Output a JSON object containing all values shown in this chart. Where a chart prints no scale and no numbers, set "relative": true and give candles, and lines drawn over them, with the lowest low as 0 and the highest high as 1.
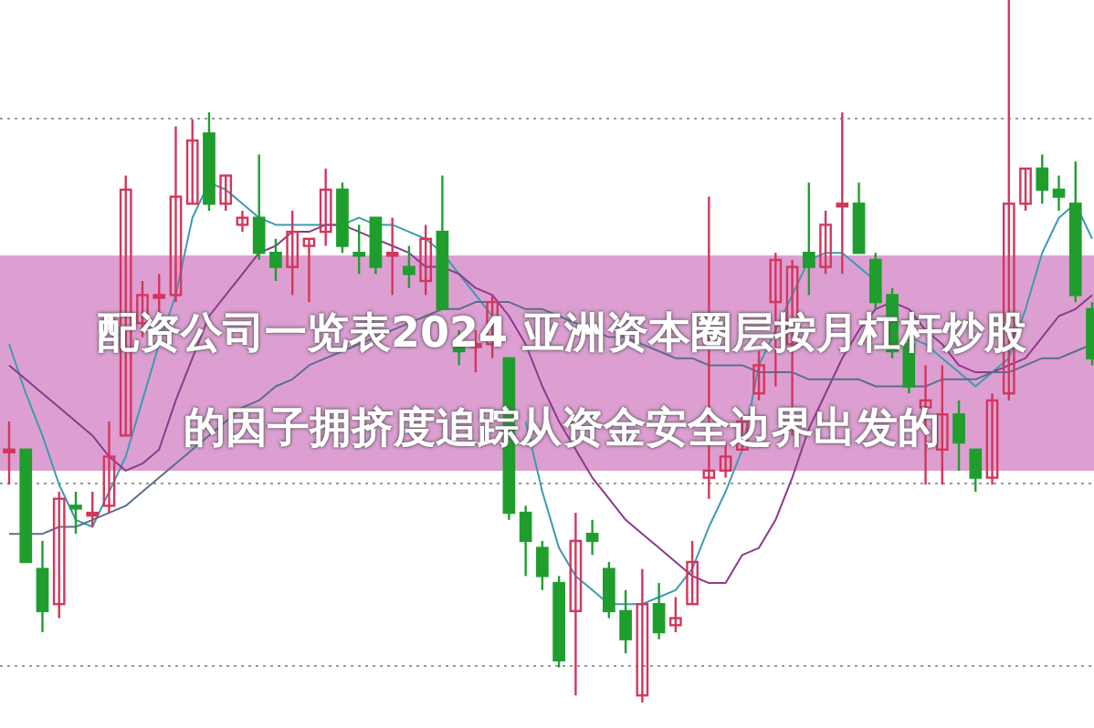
{
  "chart_data": {
    "type": "candlestick",
    "title": "配资公司一览表2024 亚洲资本圈层按月杠杆炒股的因子拥挤度追踪从资金安全边界出发的",
    "relative": true,
    "grid": true,
    "categories": [
      null,
      null,
      null,
      null,
      null,
      null,
      null,
      null,
      null,
      null,
      null,
      null,
      null,
      null,
      null,
      null,
      null,
      null,
      null,
      null,
      null,
      null,
      null,
      null,
      null,
      null,
      null,
      null,
      null,
      null,
      null,
      null,
      null,
      null,
      null,
      null,
      null,
      null,
      null,
      null,
      null,
      null,
      null,
      null,
      null,
      null,
      null,
      null,
      null,
      null,
      null,
      null,
      null,
      null,
      null,
      null,
      null,
      null,
      null,
      null,
      null,
      null,
      null,
      null,
      null,
      null
    ],
    "ohlc": [
      [
        0.36,
        0.4,
        0.31,
        0.36
      ],
      [
        0.36,
        0.36,
        0.2,
        0.2
      ],
      [
        0.19,
        0.23,
        0.1,
        0.13
      ],
      [
        0.14,
        0.3,
        0.12,
        0.29
      ],
      [
        0.28,
        0.3,
        0.24,
        0.28
      ],
      [
        0.27,
        0.3,
        0.25,
        0.27
      ],
      [
        0.28,
        0.4,
        0.27,
        0.35
      ],
      [
        0.38,
        0.75,
        0.38,
        0.73
      ],
      [
        0.54,
        0.6,
        0.52,
        0.58
      ],
      [
        0.58,
        0.61,
        0.55,
        0.58
      ],
      [
        0.58,
        0.82,
        0.57,
        0.72
      ],
      [
        0.71,
        0.83,
        0.71,
        0.8
      ],
      [
        0.81,
        0.84,
        0.7,
        0.71
      ],
      [
        0.71,
        0.75,
        0.7,
        0.75
      ],
      [
        0.68,
        0.7,
        0.67,
        0.69
      ],
      [
        0.69,
        0.78,
        0.63,
        0.64
      ],
      [
        0.64,
        0.66,
        0.6,
        0.62
      ],
      [
        0.62,
        0.7,
        0.58,
        0.67
      ],
      [
        0.65,
        0.66,
        0.57,
        0.66
      ],
      [
        0.67,
        0.76,
        0.65,
        0.73
      ],
      [
        0.73,
        0.74,
        0.64,
        0.65
      ],
      [
        0.64,
        0.68,
        0.61,
        0.64
      ],
      [
        0.69,
        0.69,
        0.61,
        0.62
      ],
      [
        0.64,
        0.69,
        0.58,
        0.64
      ],
      [
        0.62,
        0.65,
        0.59,
        0.61
      ],
      [
        0.6,
        0.68,
        0.58,
        0.66
      ],
      [
        0.67,
        0.75,
        0.56,
        0.56
      ],
      [
        0.51,
        0.53,
        0.48,
        0.5
      ],
      [
        0.51,
        0.53,
        0.47,
        0.51
      ],
      [
        0.51,
        0.58,
        0.49,
        0.57
      ],
      [
        0.49,
        0.49,
        0.26,
        0.27
      ],
      [
        0.27,
        0.28,
        0.18,
        0.23
      ],
      [
        0.22,
        0.23,
        0.16,
        0.18
      ],
      [
        0.17,
        0.18,
        0.05,
        0.06
      ],
      [
        0.13,
        0.27,
        0.01,
        0.23
      ],
      [
        0.24,
        0.26,
        0.21,
        0.23
      ],
      [
        0.19,
        0.2,
        0.12,
        0.13
      ],
      [
        0.13,
        0.16,
        0.07,
        0.09
      ],
      [
        0.01,
        0.19,
        0,
        0.14
      ],
      [
        0.14,
        0.17,
        0.09,
        0.1
      ],
      [
        0.11,
        0.15,
        0.1,
        0.12
      ],
      [
        0.14,
        0.23,
        0.14,
        0.2
      ],
      [
        0.32,
        0.72,
        0.29,
        0.33
      ],
      [
        0.33,
        0.37,
        0.32,
        0.35
      ],
      [
        0.36,
        0.41,
        0.36,
        0.4
      ],
      [
        0.44,
        0.5,
        0.43,
        0.48
      ],
      [
        0.57,
        0.64,
        0.45,
        0.63
      ],
      [
        0.51,
        0.63,
        0.38,
        0.62
      ],
      [
        0.64,
        0.74,
        0.58,
        0.62
      ],
      [
        0.62,
        0.7,
        0.61,
        0.68
      ],
      [
        0.71,
        0.84,
        0.61,
        0.71
      ],
      [
        0.71,
        0.74,
        0.64,
        0.64
      ],
      [
        0.63,
        0.64,
        0.56,
        0.57
      ],
      [
        0.58,
        0.59,
        0.49,
        0.5
      ],
      [
        0.51,
        0.52,
        0.44,
        0.45
      ],
      [
        0.42,
        0.48,
        0.31,
        0.43
      ],
      [
        0.36,
        0.48,
        0.31,
        0.41
      ],
      [
        0.41,
        0.43,
        0.33,
        0.37
      ],
      [
        0.36,
        0.36,
        0.3,
        0.32
      ],
      [
        0.32,
        0.44,
        0.31,
        0.43
      ],
      [
        0.44,
        1,
        0.43,
        0.71
      ],
      [
        0.71,
        0.76,
        0.7,
        0.76
      ],
      [
        0.76,
        0.78,
        0.71,
        0.73
      ],
      [
        0.73,
        0.75,
        0.7,
        0.72
      ],
      [
        0.71,
        0.77,
        0.57,
        0.58
      ],
      [
        0.56,
        0.57,
        0.48,
        0.49
      ]
    ],
    "colors": [
      "#d4365c",
      "#1f9e2e",
      "#1f9e2e",
      "#d4365c",
      "#1f9e2e",
      "#d4365c",
      "#d4365c",
      "#d4365c",
      "#d4365c",
      "#d4365c",
      "#d4365c",
      "#d4365c",
      "#1f9e2e",
      "#d4365c",
      "#d4365c",
      "#1f9e2e",
      "#1f9e2e",
      "#d4365c",
      "#d4365c",
      "#d4365c",
      "#1f9e2e",
      "#1f9e2e",
      "#1f9e2e",
      "#d4365c",
      "#1f9e2e",
      "#d4365c",
      "#1f9e2e",
      "#1f9e2e",
      "#d4365c",
      "#d4365c",
      "#1f9e2e",
      "#1f9e2e",
      "#1f9e2e",
      "#1f9e2e",
      "#d4365c",
      "#1f9e2e",
      "#1f9e2e",
      "#1f9e2e",
      "#d4365c",
      "#1f9e2e",
      "#d4365c",
      "#d4365c",
      "#d4365c",
      "#d4365c",
      "#d4365c",
      "#d4365c",
      "#d4365c",
      "#d4365c",
      "#1f9e2e",
      "#d4365c",
      "#d4365c",
      "#1f9e2e",
      "#1f9e2e",
      "#1f9e2e",
      "#1f9e2e",
      "#d4365c",
      "#d4365c",
      "#1f9e2e",
      "#1f9e2e",
      "#d4365c",
      "#d4365c",
      "#d4365c",
      "#1f9e2e",
      "#1f9e2e",
      "#1f9e2e",
      "#1f9e2e"
    ],
    "series": [
      {
        "type": "line",
        "color": "#3d9ab0",
        "values": [
          0.51,
          0.44,
          0.38,
          0.31,
          0.26,
          0.25,
          0.3,
          0.35,
          0.43,
          0.51,
          0.58,
          0.69,
          0.74,
          0.73,
          0.71,
          0.69,
          0.68,
          0.68,
          0.68,
          0.68,
          0.68,
          0.69,
          0.68,
          0.68,
          0.67,
          0.66,
          0.64,
          0.61,
          0.58,
          0.55,
          null,
          0.4,
          0.3,
          0.22,
          0.18,
          0.16,
          0.14,
          0.14,
          0.14,
          0.15,
          0.16,
          0.19,
          0.25,
          0.3,
          0.36,
          0.48,
          0.53,
          0.58,
          0.63,
          0.64,
          0.64,
          0.62,
          0.6,
          null,
          0.52,
          0.51,
          0.49,
          0.47,
          0.45,
          0.47,
          0.49,
          0.56,
          0.64,
          0.69,
          0.71,
          0.66
        ]
      },
      {
        "type": "line",
        "color": "#8b3a8b",
        "values": [
          0.48,
          0.46,
          0.44,
          0.42,
          0.4,
          0.38,
          0.35,
          0.33,
          0.34,
          0.36,
          0.43,
          0.49,
          0.55,
          0.58,
          0.61,
          0.64,
          0.65,
          0.67,
          0.67,
          0.68,
          0.68,
          0.67,
          0.66,
          0.65,
          0.64,
          0.62,
          0.62,
          0.61,
          0.59,
          0.58,
          0.55,
          0.51,
          0.45,
          0.4,
          0.36,
          0.32,
          0.29,
          0.26,
          0.24,
          0.22,
          0.2,
          0.18,
          0.17,
          0.17,
          0.21,
          0.22,
          0.26,
          0.32,
          0.39,
          0.44,
          0.49,
          0.53,
          0.56,
          0.57,
          0.56,
          0.53,
          0.51,
          0.48,
          0.47,
          0.47,
          0.48,
          0.49,
          0.52,
          0.55,
          0.56,
          0.58
        ]
      },
      {
        "type": "line",
        "color": "#5a6e8c",
        "values": [
          0.24,
          0.24,
          0.24,
          0.25,
          0.25,
          0.26,
          0.27,
          0.28,
          0.3,
          0.32,
          0.34,
          0.36,
          0.38,
          0.4,
          0.42,
          0.43,
          0.45,
          0.46,
          0.48,
          0.49,
          0.5,
          0.51,
          0.52,
          0.53,
          0.54,
          0.55,
          0.56,
          0.56,
          0.57,
          0.57,
          0.57,
          0.56,
          0.56,
          0.55,
          0.54,
          0.53,
          0.52,
          0.52,
          0.51,
          0.5,
          0.49,
          0.49,
          0.48,
          0.48,
          0.48,
          0.47,
          0.47,
          0.47,
          0.46,
          0.46,
          0.46,
          0.46,
          0.45,
          0.45,
          0.45,
          0.45,
          0.46,
          0.46,
          0.46,
          0.47,
          0.47,
          0.48,
          0.49,
          0.49,
          0.5,
          0.51
        ]
      }
    ]
  }
}
